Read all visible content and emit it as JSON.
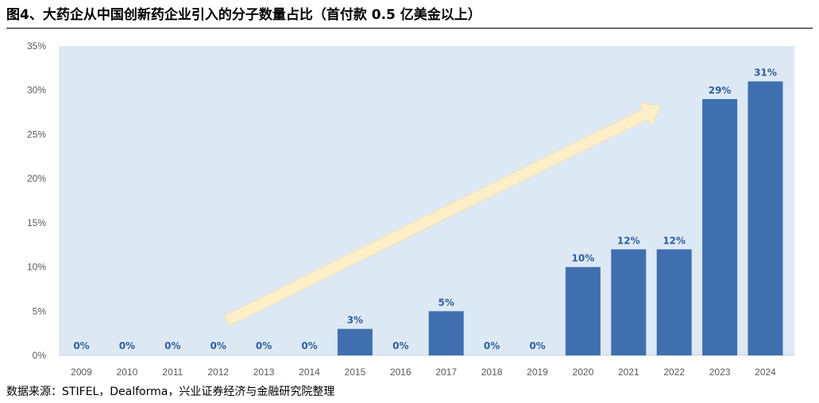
{
  "title": "图4、大药企从中国创新药企业引入的分子数量占比（首付款 0.5 亿美金以上）",
  "source": "数据来源：STIFEL，Dealforma，兴业证券经济与金融研究院整理",
  "colors": {
    "bar": "#3f6fae",
    "plot_bg": "#dde8f5",
    "label": "#2f5f9e",
    "axis_text": "#595959",
    "arrow": "#fdefc8"
  },
  "chart_data": {
    "type": "bar",
    "title": "图4、大药企从中国创新药企业引入的分子数量占比（首付款 0.5 亿美金以上）",
    "categories": [
      "2009",
      "2010",
      "2011",
      "2012",
      "2013",
      "2014",
      "2015",
      "2016",
      "2017",
      "2018",
      "2019",
      "2020",
      "2021",
      "2022",
      "2023",
      "2024"
    ],
    "values": [
      0,
      0,
      0,
      0,
      0,
      0,
      3,
      0,
      5,
      0,
      0,
      10,
      12,
      12,
      29,
      31
    ],
    "data_labels": [
      "0%",
      "0%",
      "0%",
      "0%",
      "0%",
      "0%",
      "3%",
      "0%",
      "5%",
      "0%",
      "0%",
      "10%",
      "12%",
      "12%",
      "29%",
      "31%"
    ],
    "y_ticks": [
      0,
      5,
      10,
      15,
      20,
      25,
      30,
      35
    ],
    "y_tick_labels": [
      "0%",
      "5%",
      "10%",
      "15%",
      "20%",
      "25%",
      "30%",
      "35%"
    ],
    "ylim": [
      0,
      35
    ],
    "xlabel": "",
    "ylabel": "",
    "grid": false,
    "annotation": "upward trend arrow"
  }
}
